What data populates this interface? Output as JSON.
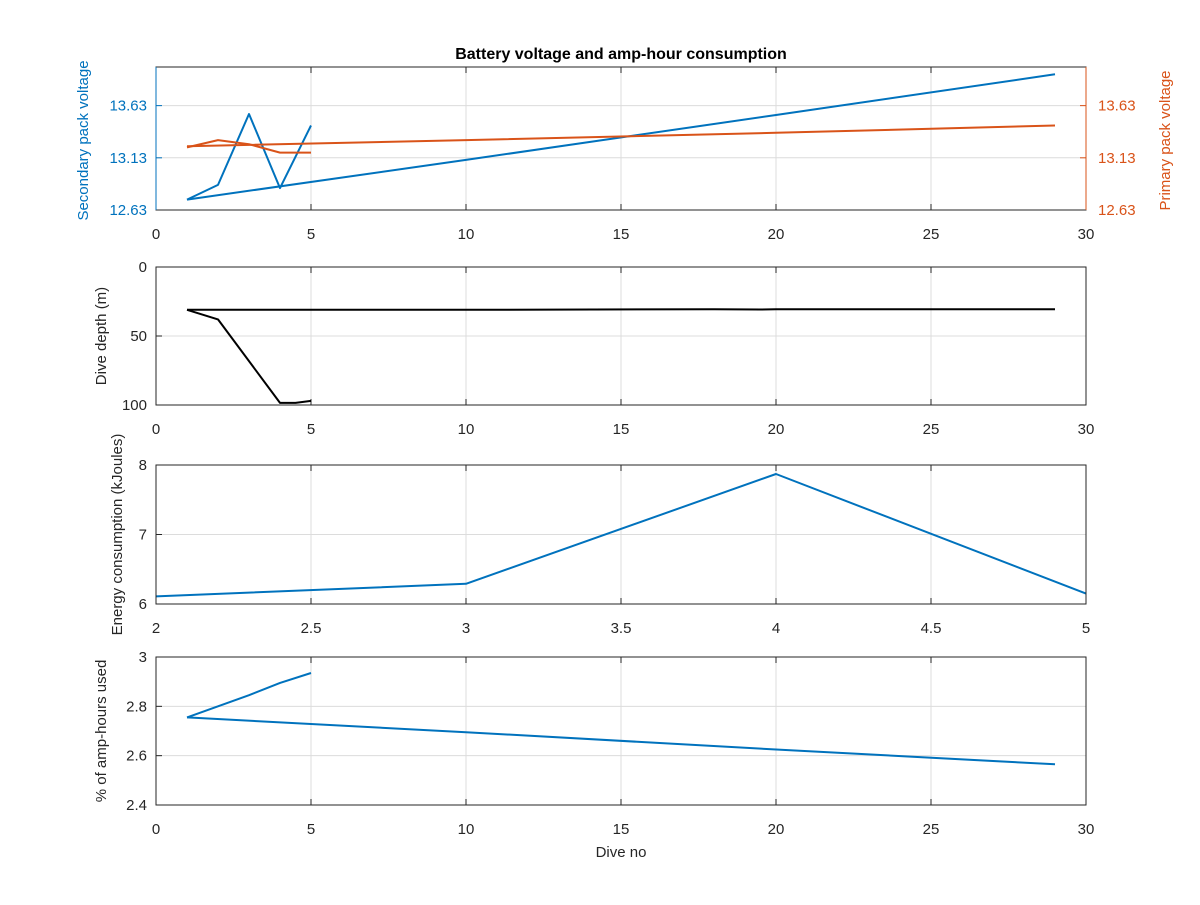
{
  "chart_data": [
    {
      "type": "line",
      "title": "Battery voltage and amp-hour consumption",
      "xlabel": "",
      "xlim": [
        0,
        30
      ],
      "xticks": [
        "0",
        "5",
        "10",
        "15",
        "20",
        "25",
        "30"
      ],
      "y_left": {
        "label": "Secondary pack voltage",
        "ylim": [
          12.63,
          14.0
        ],
        "ticks": [
          "12.63",
          "13.13",
          "13.63"
        ],
        "color": "#0072bd"
      },
      "y_right": {
        "label": "Primary pack voltage",
        "ylim": [
          12.63,
          14.0
        ],
        "ticks": [
          "12.63",
          "13.13",
          "13.63"
        ],
        "color": "#d95319"
      },
      "grid": true,
      "series": [
        {
          "axis": "left",
          "color": "#0072bd",
          "x": [
            1,
            2,
            3,
            4,
            5
          ],
          "y": [
            12.73,
            12.87,
            13.55,
            12.84,
            13.44
          ]
        },
        {
          "axis": "left",
          "color": "#0072bd",
          "x": [
            1,
            10,
            20,
            29
          ],
          "y": [
            12.73,
            13.11,
            13.54,
            13.93
          ]
        },
        {
          "axis": "right",
          "color": "#d95319",
          "x": [
            1,
            2,
            3,
            4,
            5
          ],
          "y": [
            13.23,
            13.3,
            13.26,
            13.18,
            13.18
          ]
        },
        {
          "axis": "right",
          "color": "#d95319",
          "x": [
            1,
            10,
            20,
            29
          ],
          "y": [
            13.24,
            13.3,
            13.37,
            13.44
          ]
        }
      ]
    },
    {
      "type": "line",
      "xlim": [
        0,
        30
      ],
      "xticks": [
        "0",
        "5",
        "10",
        "15",
        "20",
        "25",
        "30"
      ],
      "ylabel": "Dive depth (m)",
      "ylim": [
        0,
        100
      ],
      "yreversed": true,
      "yticks": [
        "0",
        "50",
        "100"
      ],
      "grid": true,
      "series": [
        {
          "color": "#000000",
          "x": [
            1,
            2,
            4,
            4.5,
            5
          ],
          "y": [
            31,
            38,
            98.5,
            98.5,
            97
          ]
        },
        {
          "color": "#000000",
          "x": [
            1,
            10,
            18,
            19.5,
            20,
            29
          ],
          "y": [
            31,
            31,
            30.6,
            30.8,
            30.6,
            30.6
          ]
        }
      ]
    },
    {
      "type": "line",
      "xlim": [
        2,
        5
      ],
      "xticks": [
        "2",
        "2.5",
        "3",
        "3.5",
        "4",
        "4.5",
        "5"
      ],
      "ylabel": "Energy consumption (kJoules)",
      "ylim": [
        6,
        8
      ],
      "yticks": [
        "6",
        "7",
        "8"
      ],
      "grid": true,
      "series": [
        {
          "color": "#0072bd",
          "x": [
            2,
            3,
            4,
            5
          ],
          "y": [
            6.11,
            6.29,
            7.87,
            6.15
          ]
        }
      ]
    },
    {
      "type": "line",
      "xlim": [
        0,
        30
      ],
      "xticks": [
        "0",
        "5",
        "10",
        "15",
        "20",
        "25",
        "30"
      ],
      "xlabel": "Dive no",
      "ylabel": "% of amp-hours used",
      "ylim": [
        2.4,
        3.0
      ],
      "yticks": [
        "2.4",
        "2.6",
        "2.8",
        "3"
      ],
      "grid": true,
      "series": [
        {
          "color": "#0072bd",
          "x": [
            1,
            2,
            3,
            4,
            5
          ],
          "y": [
            2.755,
            2.8,
            2.845,
            2.895,
            2.935
          ]
        },
        {
          "color": "#0072bd",
          "x": [
            1,
            10,
            20,
            29
          ],
          "y": [
            2.755,
            2.695,
            2.625,
            2.565
          ]
        }
      ]
    }
  ]
}
